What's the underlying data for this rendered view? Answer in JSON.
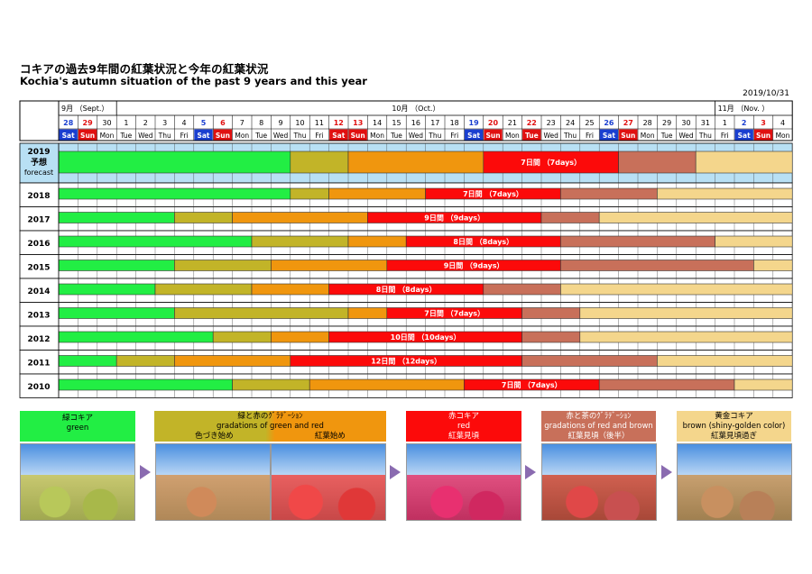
{
  "title_jp": "コキアの過去9年間の紅葉状況と今年の紅葉状況",
  "title_en": "Kochia's autumn situation of the past 9 years and this year",
  "report_date": "2019/10/31",
  "months": [
    {
      "label": "9月 （Sept.）",
      "first_day": 0,
      "last_day": 2
    },
    {
      "label": "10月 （Oct.）",
      "first_day": 3,
      "last_day": 33
    },
    {
      "label": "11月 （Nov. ）",
      "first_day": 34,
      "last_day": 37
    }
  ],
  "days": [
    {
      "d": "28",
      "w": "Sat"
    },
    {
      "d": "29",
      "w": "Sun"
    },
    {
      "d": "30",
      "w": "Mon"
    },
    {
      "d": "1",
      "w": "Tue"
    },
    {
      "d": "2",
      "w": "Wed"
    },
    {
      "d": "3",
      "w": "Thu"
    },
    {
      "d": "4",
      "w": "Fri"
    },
    {
      "d": "5",
      "w": "Sat"
    },
    {
      "d": "6",
      "w": "Sun"
    },
    {
      "d": "7",
      "w": "Mon"
    },
    {
      "d": "8",
      "w": "Tue"
    },
    {
      "d": "9",
      "w": "Wed"
    },
    {
      "d": "10",
      "w": "Thu"
    },
    {
      "d": "11",
      "w": "Fri"
    },
    {
      "d": "12",
      "w": "Sat"
    },
    {
      "d": "13",
      "w": "Sun"
    },
    {
      "d": "14",
      "w": "Mon"
    },
    {
      "d": "15",
      "w": "Tue"
    },
    {
      "d": "16",
      "w": "Wed"
    },
    {
      "d": "17",
      "w": "Thu"
    },
    {
      "d": "18",
      "w": "Fri"
    },
    {
      "d": "19",
      "w": "Sat"
    },
    {
      "d": "20",
      "w": "Sun"
    },
    {
      "d": "21",
      "w": "Mon"
    },
    {
      "d": "22",
      "w": "Tue"
    },
    {
      "d": "23",
      "w": "Wed"
    },
    {
      "d": "24",
      "w": "Thu"
    },
    {
      "d": "25",
      "w": "Fri"
    },
    {
      "d": "26",
      "w": "Sat"
    },
    {
      "d": "27",
      "w": "Sun"
    },
    {
      "d": "28",
      "w": "Mon"
    },
    {
      "d": "29",
      "w": "Tue"
    },
    {
      "d": "30",
      "w": "Wed"
    },
    {
      "d": "31",
      "w": "Thu"
    },
    {
      "d": "1",
      "w": "Fri"
    },
    {
      "d": "2",
      "w": "Sat"
    },
    {
      "d": "3",
      "w": "Sun"
    },
    {
      "d": "4",
      "w": "Mon"
    }
  ],
  "holidays": [
    14,
    24,
    36
  ],
  "colors": {
    "green": "#22ee44",
    "olive": "#c2b428",
    "orange": "#f0960e",
    "red": "#fc0a0a",
    "brown": "#c8705a",
    "gold": "#f4d68c",
    "sat": "#1a3fd0",
    "sun": "#e01010",
    "forecast_bg": "#b8e0f4"
  },
  "chart_data": {
    "type": "table",
    "x_unit": "day index from Sep 28 (0) to Nov 4 (37)",
    "rows": [
      {
        "year": "2019",
        "label_jp": "予想",
        "label_en": "forecast",
        "forecast": true,
        "segments": [
          [
            "green",
            0,
            11
          ],
          [
            "olive",
            12,
            14
          ],
          [
            "orange",
            15,
            21
          ],
          [
            "red",
            22,
            28
          ],
          [
            "brown",
            29,
            32
          ],
          [
            "gold",
            33,
            37
          ]
        ],
        "red_label": "7日間 （7days）"
      },
      {
        "year": "2018",
        "segments": [
          [
            "green",
            0,
            11
          ],
          [
            "olive",
            12,
            13
          ],
          [
            "orange",
            14,
            18
          ],
          [
            "red",
            19,
            25
          ],
          [
            "brown",
            26,
            30
          ],
          [
            "gold",
            31,
            37
          ]
        ],
        "red_label": "7日間 （7days）"
      },
      {
        "year": "2017",
        "segments": [
          [
            "green",
            0,
            5
          ],
          [
            "olive",
            6,
            8
          ],
          [
            "orange",
            9,
            15
          ],
          [
            "red",
            16,
            24
          ],
          [
            "brown",
            25,
            27
          ],
          [
            "gold",
            28,
            37
          ]
        ],
        "red_label": "9日間 （9days）"
      },
      {
        "year": "2016",
        "segments": [
          [
            "green",
            0,
            9
          ],
          [
            "olive",
            10,
            14
          ],
          [
            "orange",
            15,
            17
          ],
          [
            "red",
            18,
            25
          ],
          [
            "brown",
            26,
            33
          ],
          [
            "gold",
            34,
            37
          ]
        ],
        "red_label": "8日間 （8days）"
      },
      {
        "year": "2015",
        "segments": [
          [
            "green",
            0,
            5
          ],
          [
            "olive",
            6,
            10
          ],
          [
            "orange",
            11,
            16
          ],
          [
            "red",
            17,
            25
          ],
          [
            "brown",
            26,
            35
          ],
          [
            "gold",
            36,
            37
          ]
        ],
        "red_label": "9日間 （9days）"
      },
      {
        "year": "2014",
        "segments": [
          [
            "green",
            0,
            4
          ],
          [
            "olive",
            5,
            9
          ],
          [
            "orange",
            10,
            13
          ],
          [
            "red",
            14,
            21
          ],
          [
            "brown",
            22,
            25
          ],
          [
            "gold",
            26,
            37
          ]
        ],
        "red_label": "8日間 （8days）"
      },
      {
        "year": "2013",
        "segments": [
          [
            "green",
            0,
            5
          ],
          [
            "olive",
            6,
            14
          ],
          [
            "orange",
            15,
            16
          ],
          [
            "red",
            17,
            23
          ],
          [
            "brown",
            24,
            26
          ],
          [
            "gold",
            27,
            37
          ]
        ],
        "red_label": "7日間 （7days）"
      },
      {
        "year": "2012",
        "segments": [
          [
            "green",
            0,
            7
          ],
          [
            "olive",
            8,
            10
          ],
          [
            "orange",
            11,
            13
          ],
          [
            "red",
            14,
            23
          ],
          [
            "brown",
            24,
            26
          ],
          [
            "gold",
            27,
            37
          ]
        ],
        "red_label": "10日間 （10days）"
      },
      {
        "year": "2011",
        "segments": [
          [
            "green",
            0,
            2
          ],
          [
            "olive",
            3,
            5
          ],
          [
            "orange",
            6,
            11
          ],
          [
            "red",
            12,
            23
          ],
          [
            "brown",
            24,
            30
          ],
          [
            "gold",
            31,
            37
          ]
        ],
        "red_label": "12日間 （12days）"
      },
      {
        "year": "2010",
        "segments": [
          [
            "green",
            0,
            8
          ],
          [
            "olive",
            9,
            12
          ],
          [
            "orange",
            13,
            20
          ],
          [
            "red",
            21,
            27
          ],
          [
            "brown",
            28,
            34
          ],
          [
            "gold",
            35,
            37
          ]
        ],
        "red_label": "7日間 （7days）"
      }
    ]
  },
  "legend": [
    {
      "color": "green",
      "line1": "緑コキア",
      "line2": "green",
      "sub": []
    },
    {
      "color": "olive_orange",
      "line1": "緑と赤のｸﾞﾗﾃﾞｰｼｮﾝ",
      "line2": "gradations of green and red",
      "sub": [
        "色づき始め",
        "紅葉始め"
      ]
    },
    {
      "color": "red",
      "line1": "赤コキア",
      "line2": "red",
      "sub": [
        "紅葉見頃"
      ]
    },
    {
      "color": "brown",
      "line1": "赤と茶のｸﾞﾗﾃﾞｰｼｮﾝ",
      "line2": "gradations of red and brown",
      "sub": [
        "紅葉見頃（後半）"
      ]
    },
    {
      "color": "gold",
      "line1": "黄金コキア",
      "line2": "brown (shiny-golden color)",
      "sub": [
        "紅葉見頃過ぎ"
      ]
    }
  ]
}
